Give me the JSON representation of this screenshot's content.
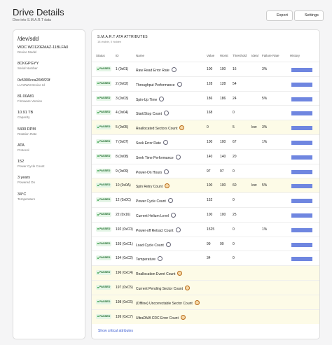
{
  "header": {
    "title": "Drive Details",
    "subtitle": "Dive into S.M.A.R.T data",
    "buttons": [
      "Export",
      "Settings"
    ]
  },
  "device": {
    "name": "/dev/sdd",
    "fields": [
      {
        "value": "WDC WD120EMAZ-11BLFA0",
        "label": "Device Model"
      },
      {
        "value": "8CKGPGYY",
        "label": "Serial Number"
      },
      {
        "value": "0x5000cca26f6f23f",
        "label": "LU WWN Device Id"
      },
      {
        "value": "81.00A81",
        "label": "Firmware Version"
      },
      {
        "value": "10.91 TB",
        "label": "Capacity"
      },
      {
        "value": "5400 RPM",
        "label": "Rotation Rate"
      },
      {
        "value": "ATA",
        "label": "Protocol"
      },
      {
        "value": "152",
        "label": "Power Cycle Count"
      },
      {
        "value": "3 years",
        "label": "Powered On"
      },
      {
        "value": "34°C",
        "label": "Temperature"
      }
    ]
  },
  "table": {
    "title": "S.M.A.R.T ATA ATTRIBUTES",
    "subtitle": "18 visible, 0 hidden",
    "columns": [
      "Status",
      "ID",
      "Name",
      "Value",
      "Worst",
      "Threshold",
      "Ideal",
      "Failure Rate",
      "History"
    ],
    "rows": [
      {
        "status": "PASSED",
        "id": "1 (0x01)",
        "name": "Raw Read Error Rate",
        "value": 100,
        "worst": 100,
        "threshold": 16,
        "ideal": null,
        "failure_rate": "3%",
        "critical": false
      },
      {
        "status": "PASSED",
        "id": "2 (0x02)",
        "name": "Throughput Performance",
        "value": 128,
        "worst": 128,
        "threshold": 54,
        "ideal": null,
        "failure_rate": null,
        "critical": false
      },
      {
        "status": "PASSED",
        "id": "3 (0x03)",
        "name": "Spin-Up Time",
        "value": 186,
        "worst": 186,
        "threshold": 24,
        "ideal": null,
        "failure_rate": "5%",
        "critical": false
      },
      {
        "status": "PASSED",
        "id": "4 (0x04)",
        "name": "Start/Stop Count",
        "value": 168,
        "worst": null,
        "threshold": 0,
        "ideal": null,
        "failure_rate": null,
        "critical": false
      },
      {
        "status": "PASSED",
        "id": "5 (0x05)",
        "name": "Reallocated Sectors Count",
        "value": 0,
        "worst": null,
        "threshold": 5,
        "ideal": "low",
        "failure_rate": "3%",
        "critical": true
      },
      {
        "status": "PASSED",
        "id": "7 (0x07)",
        "name": "Seek Error Rate",
        "value": 100,
        "worst": 100,
        "threshold": 67,
        "ideal": null,
        "failure_rate": "1%",
        "critical": false
      },
      {
        "status": "PASSED",
        "id": "8 (0x08)",
        "name": "Seek Time Performance",
        "value": 140,
        "worst": 140,
        "threshold": 20,
        "ideal": null,
        "failure_rate": null,
        "critical": false
      },
      {
        "status": "PASSED",
        "id": "9 (0x09)",
        "name": "Power-On Hours",
        "value": 97,
        "worst": 97,
        "threshold": 0,
        "ideal": null,
        "failure_rate": null,
        "critical": false
      },
      {
        "status": "PASSED",
        "id": "10 (0x0A)",
        "name": "Spin Retry Count",
        "value": 100,
        "worst": 100,
        "threshold": 60,
        "ideal": "low",
        "failure_rate": "5%",
        "critical": true
      },
      {
        "status": "PASSED",
        "id": "12 (0x0C)",
        "name": "Power Cycle Count",
        "value": 152,
        "worst": null,
        "threshold": 0,
        "ideal": null,
        "failure_rate": null,
        "critical": false
      },
      {
        "status": "PASSED",
        "id": "22 (0x16)",
        "name": "Current Helium Level",
        "value": 100,
        "worst": 100,
        "threshold": 25,
        "ideal": null,
        "failure_rate": null,
        "critical": false
      },
      {
        "status": "PASSED",
        "id": "192 (0xC0)",
        "name": "Power-off Retract Count",
        "value": 1525,
        "worst": null,
        "threshold": 0,
        "ideal": null,
        "failure_rate": "1%",
        "critical": false
      },
      {
        "status": "PASSED",
        "id": "193 (0xC1)",
        "name": "Load Cycle Count",
        "value": 99,
        "worst": 99,
        "threshold": 0,
        "ideal": null,
        "failure_rate": null,
        "critical": false
      },
      {
        "status": "PASSED",
        "id": "194 (0xC2)",
        "name": "Temperature",
        "value": 34,
        "worst": null,
        "threshold": 0,
        "ideal": null,
        "failure_rate": null,
        "critical": false
      },
      {
        "status": "PASSED",
        "id": "196 (0xC4)",
        "name": "Reallocation Event Count",
        "value": null,
        "worst": null,
        "threshold": null,
        "ideal": null,
        "failure_rate": null,
        "critical": true
      },
      {
        "status": "PASSED",
        "id": "197 (0xC5)",
        "name": "Current Pending Sector Count",
        "value": null,
        "worst": null,
        "threshold": null,
        "ideal": null,
        "failure_rate": null,
        "critical": true
      },
      {
        "status": "PASSED",
        "id": "198 (0xC6)",
        "name": "(Offline) Uncorrectable Sector Count",
        "value": null,
        "worst": null,
        "threshold": null,
        "ideal": null,
        "failure_rate": null,
        "critical": true
      },
      {
        "status": "PASSED",
        "id": "199 (0xC7)",
        "name": "UltraDMA CRC Error Count",
        "value": null,
        "worst": null,
        "threshold": null,
        "ideal": null,
        "failure_rate": null,
        "critical": true
      }
    ],
    "footer_link": "Show critical attributes"
  }
}
